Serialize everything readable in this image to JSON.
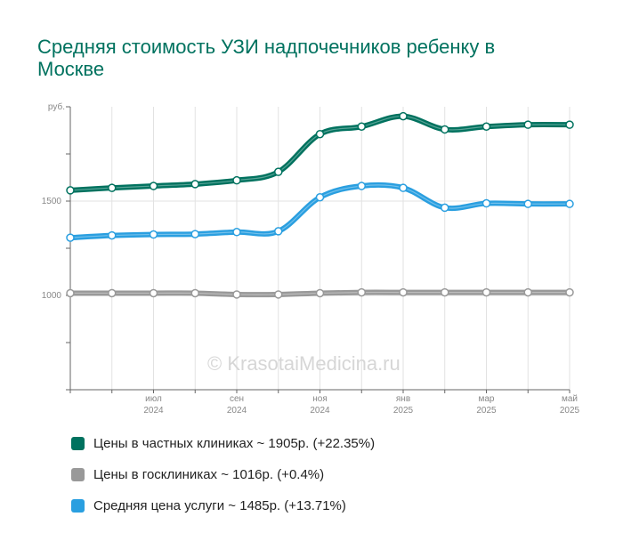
{
  "title": "Средняя стоимость УЗИ надпочечников ребенку в Москве",
  "watermark": "© KrasotaiMedicina.ru",
  "chart_data": {
    "type": "line",
    "y_unit_label": "руб.",
    "yticks": [
      1000,
      1500
    ],
    "ylim": [
      500,
      2000
    ],
    "grid": true,
    "x": [
      "2024-05",
      "2024-06",
      "2024-07",
      "2024-08",
      "2024-09",
      "2024-10",
      "2024-11",
      "2024-12",
      "2025-01",
      "2025-02",
      "2025-03",
      "2025-04",
      "2025-05"
    ],
    "xtick_labels": [
      {
        "x": "2024-07",
        "month": "июл",
        "year": "2024"
      },
      {
        "x": "2024-09",
        "month": "сен",
        "year": "2024"
      },
      {
        "x": "2024-11",
        "month": "ноя",
        "year": "2024"
      },
      {
        "x": "2025-01",
        "month": "янв",
        "year": "2025"
      },
      {
        "x": "2025-03",
        "month": "мар",
        "year": "2025"
      },
      {
        "x": "2025-05",
        "month": "май",
        "year": "2025"
      }
    ],
    "series": [
      {
        "name": "Цены в частных клиниках",
        "color": "#00725f",
        "summary": "Цены в частных клиниках ~ 1905р. (+22.35%)",
        "values": [
          1557,
          1570,
          1580,
          1590,
          1610,
          1655,
          1855,
          1895,
          1950,
          1880,
          1895,
          1905,
          1905
        ]
      },
      {
        "name": "Цены в госклиниках",
        "color": "#999999",
        "summary": "Цены в госклиниках ~ 1016р. (+0.4%)",
        "values": [
          1012,
          1012,
          1012,
          1012,
          1005,
          1005,
          1012,
          1016,
          1016,
          1016,
          1016,
          1016,
          1016
        ]
      },
      {
        "name": "Средняя цена услуги",
        "color": "#2a9fe0",
        "summary": "Средняя цена услуги ~ 1485р. (+13.71%)",
        "values": [
          1306,
          1318,
          1323,
          1325,
          1336,
          1340,
          1520,
          1580,
          1570,
          1465,
          1488,
          1485,
          1485
        ]
      }
    ]
  }
}
